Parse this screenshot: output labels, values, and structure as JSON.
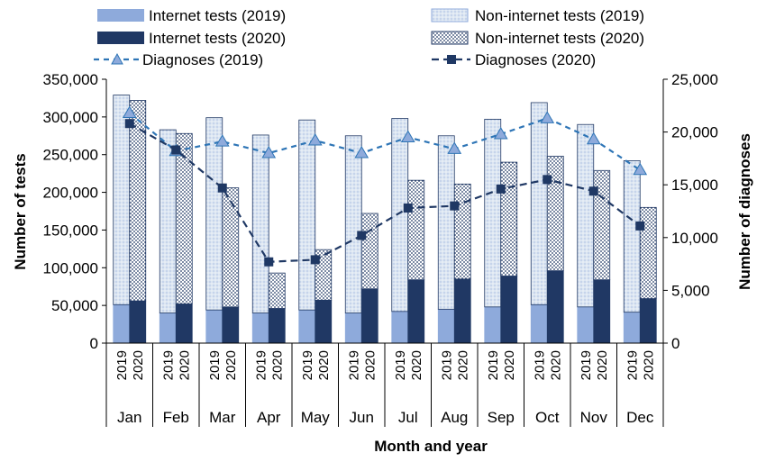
{
  "chart_data": {
    "type": "bar",
    "xlabel": "Month and year",
    "ylabel": "Number of tests",
    "y2label": "Number of diagnoses",
    "categories": [
      "Jan",
      "Feb",
      "Mar",
      "Apr",
      "May",
      "Jun",
      "Jul",
      "Aug",
      "Sep",
      "Oct",
      "Nov",
      "Dec"
    ],
    "years": [
      "2019",
      "2020"
    ],
    "ylim": [
      0,
      350000
    ],
    "y2lim": [
      0,
      25000
    ],
    "yticks": [
      "0",
      "50,000",
      "100,000",
      "150,000",
      "200,000",
      "250,000",
      "300,000",
      "350,000"
    ],
    "y2ticks": [
      "0",
      "5,000",
      "10,000",
      "15,000",
      "20,000",
      "25,000"
    ],
    "legend_position": "top",
    "series": [
      {
        "name": "Internet tests (2019)",
        "kind": "bar-stack-bottom",
        "year": "2019",
        "color": "#8eaadb",
        "values": [
          51000,
          40000,
          44000,
          40000,
          44000,
          40000,
          42000,
          45000,
          48000,
          51000,
          48000,
          41000
        ]
      },
      {
        "name": "Non-internet tests (2019)",
        "kind": "bar-stack-top",
        "year": "2019",
        "color": "#dce6f2",
        "pattern": "dots-light",
        "values": [
          278000,
          243000,
          255000,
          236000,
          252000,
          235000,
          256000,
          230000,
          249000,
          268000,
          242000,
          201000
        ]
      },
      {
        "name": "Internet tests (2020)",
        "kind": "bar-stack-bottom",
        "year": "2020",
        "color": "#203864",
        "values": [
          56000,
          52000,
          48000,
          46000,
          57000,
          72000,
          84000,
          85000,
          89000,
          96000,
          84000,
          59000
        ]
      },
      {
        "name": "Non-internet tests (2020)",
        "kind": "bar-stack-top",
        "year": "2020",
        "color": "#ffffff",
        "pattern": "dots-dark",
        "values": [
          266000,
          226000,
          158000,
          47000,
          67000,
          100000,
          132000,
          126000,
          151000,
          152000,
          145000,
          121000
        ]
      },
      {
        "name": "Diagnoses (2019)",
        "kind": "line",
        "axis": "right",
        "color": "#2e75b6",
        "marker": "triangle",
        "values": [
          21800,
          18200,
          19100,
          18000,
          19200,
          18000,
          19500,
          18400,
          19800,
          21300,
          19300,
          16400
        ]
      },
      {
        "name": "Diagnoses (2020)",
        "kind": "line",
        "axis": "right",
        "color": "#1f3864",
        "marker": "square",
        "values": [
          20800,
          18300,
          14700,
          7700,
          7900,
          10200,
          12800,
          13000,
          14600,
          15500,
          14400,
          11100
        ]
      }
    ]
  }
}
